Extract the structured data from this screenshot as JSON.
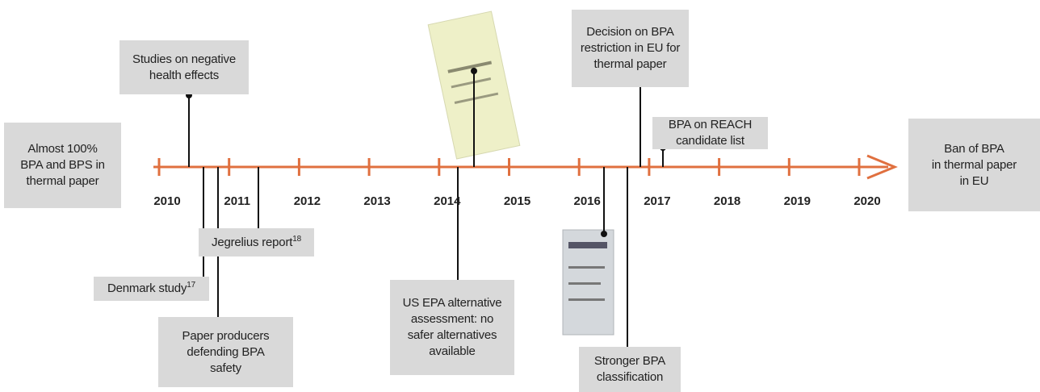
{
  "years": [
    "2010",
    "2011",
    "2012",
    "2013",
    "2014",
    "2015",
    "2016",
    "2017",
    "2018",
    "2019",
    "2020"
  ],
  "events": [
    {
      "lines": [
        "Almost 100%",
        "BPA and BPS in",
        "thermal paper"
      ]
    },
    {
      "lines": [
        "Studies on negative",
        "health effects"
      ]
    },
    {
      "lines": [
        "Denmark study"
      ],
      "sup": "17"
    },
    {
      "lines": [
        "Paper producers",
        "defending BPA",
        "safety"
      ]
    },
    {
      "lines": [
        "Jegrelius report"
      ],
      "sup": "18"
    },
    {
      "lines": [
        "US EPA alternative",
        "assessment: no",
        "safer alternatives",
        "available"
      ]
    },
    {
      "lines": [
        "Stronger BPA",
        "classification"
      ]
    },
    {
      "lines": [
        "Decision on BPA",
        "restriction in EU for",
        "thermal paper"
      ]
    },
    {
      "lines": [
        "BPA on REACH",
        "candidate list"
      ]
    },
    {
      "lines": [
        "Ban of BPA",
        "in thermal paper",
        "in EU"
      ]
    }
  ]
}
